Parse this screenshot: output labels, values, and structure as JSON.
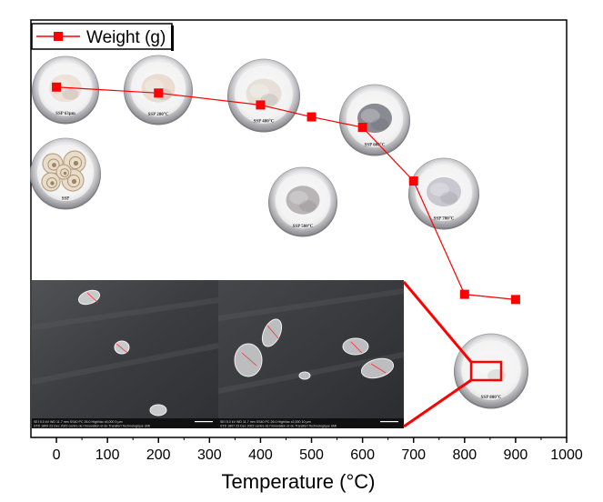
{
  "chart_data": {
    "type": "line",
    "xlabel": "Temperature (°C)",
    "ylabel": "",
    "xlim": [
      -50,
      1000
    ],
    "xticks": [
      0,
      100,
      200,
      300,
      400,
      500,
      600,
      700,
      800,
      900,
      1000
    ],
    "series": [
      {
        "name": "Weight (g)",
        "color": "#ff0000",
        "marker": "square",
        "x": [
          0,
          200,
          400,
          500,
          600,
          700,
          800,
          900
        ],
        "y": [
          3.3,
          3.22,
          3.06,
          2.9,
          2.76,
          2.04,
          0.52,
          0.45
        ]
      }
    ],
    "ylim": [
      -1.4,
      4.2
    ],
    "legend": {
      "position": "top-left",
      "entries": [
        "Weight (g)"
      ]
    },
    "grid": false
  },
  "samples": [
    {
      "label": "SSP 63µm",
      "powder": "#ede1d8",
      "type": "powder"
    },
    {
      "label": "SSP 200°C",
      "powder": "#ebdcd2",
      "type": "powder"
    },
    {
      "label": "SSP 400°C",
      "powder": "#e6e0d9",
      "type": "powder"
    },
    {
      "label": "SSP 600°C",
      "powder": "#8a8a93",
      "type": "powder"
    },
    {
      "label": "SSP",
      "powder": "#e9dcc8",
      "type": "shells"
    },
    {
      "label": "SSP 500°C",
      "powder": "#b9b5b6",
      "type": "powder"
    },
    {
      "label": "SSP 700°C",
      "powder": "#c9c8d0",
      "type": "powder"
    },
    {
      "label": "SSP 800°C",
      "powder": "#f4f4f3",
      "type": "powder"
    }
  ],
  "sem": {
    "footer_left": "SEI   5.0 kV   WD 11.7 mm   SS40   PC 26.0   HighVac   x5,000      5 µm",
    "footer_left_2": "STD   1809   23 Dec 2022   centre de l'innovation et du Transfert Technologique UMI",
    "footer_right": "SEI   5.0 kV   WD 11.7 mm   SS40   PC 26.0   HighVac   x2,000      10 µm",
    "footer_right_2": "STD   1807   23 Dec 2022   centre de l'innovation et du Transfert Technologique UMI"
  },
  "colors": {
    "accent": "#ff0000",
    "axis": "#000000",
    "sem_bg": "#3b3d40"
  }
}
